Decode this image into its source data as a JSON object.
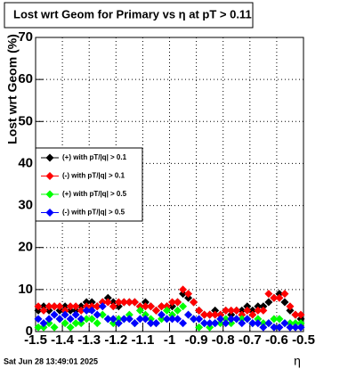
{
  "chart_data": {
    "type": "scatter",
    "title": "Lost wrt Geom for Primary vs   η  at pT > 0.11",
    "y_label": "Lost wrt Geom (%)",
    "x_label": "η",
    "footer": "Sat Jun 28 13:49:01 2025",
    "x": [
      -1.49,
      -1.47,
      -1.45,
      -1.43,
      -1.41,
      -1.39,
      -1.37,
      -1.35,
      -1.33,
      -1.31,
      -1.29,
      -1.27,
      -1.25,
      -1.23,
      -1.21,
      -1.19,
      -1.17,
      -1.15,
      -1.13,
      -1.11,
      -1.09,
      -1.07,
      -1.05,
      -1.03,
      -1.01,
      -0.99,
      -0.97,
      -0.95,
      -0.93,
      -0.91,
      -0.89,
      -0.87,
      -0.85,
      -0.83,
      -0.81,
      -0.79,
      -0.77,
      -0.75,
      -0.73,
      -0.71,
      -0.69,
      -0.67,
      -0.65,
      -0.63,
      -0.61,
      -0.59,
      -0.57,
      -0.55,
      -0.53,
      -0.51
    ],
    "series": [
      {
        "name": "(+) with pT/|q| > 0.1",
        "color": "#000000",
        "values": [
          5,
          6,
          5,
          6,
          5,
          6,
          5,
          5,
          6,
          7,
          7,
          6,
          7,
          8,
          7,
          6,
          7,
          7,
          7,
          6,
          7,
          6,
          5,
          6,
          6,
          6,
          7,
          9,
          8,
          7,
          5,
          4,
          4,
          5,
          4,
          5,
          4,
          5,
          5,
          6,
          5,
          6,
          6,
          7,
          8,
          9,
          7,
          5,
          4,
          3
        ]
      },
      {
        "name": "(-) with pT/|q| > 0.1",
        "color": "#ff0000",
        "values": [
          6,
          5,
          6,
          6,
          6,
          5,
          6,
          6,
          5,
          6,
          6,
          6,
          7,
          7,
          6,
          7,
          7,
          7,
          7,
          6,
          6,
          6,
          5,
          6,
          6,
          7,
          7,
          10,
          9,
          7,
          5,
          4,
          4,
          4,
          4,
          5,
          5,
          5,
          4,
          5,
          4,
          5,
          5,
          9,
          8,
          8,
          9,
          6,
          4,
          4
        ]
      },
      {
        "name": "(+) with pT/|q| > 0.5",
        "color": "#00ff00",
        "values": [
          1,
          1,
          2,
          1,
          3,
          2,
          1,
          2,
          2,
          3,
          3,
          2,
          4,
          3,
          2,
          3,
          3,
          4,
          2,
          5,
          4,
          3,
          2,
          3,
          5,
          4,
          5,
          6,
          4,
          3,
          1,
          2,
          1,
          2,
          2,
          3,
          2,
          3,
          3,
          3,
          2,
          3,
          2,
          2,
          3,
          3,
          2,
          2,
          2,
          2
        ]
      },
      {
        "name": "(-) with pT/|q| > 0.5",
        "color": "#0000ff",
        "values": [
          3,
          2,
          3,
          4,
          3,
          4,
          3,
          4,
          3,
          5,
          5,
          4,
          6,
          3,
          3,
          2,
          3,
          3,
          2,
          3,
          3,
          2,
          2,
          4,
          3,
          3,
          3,
          2,
          4,
          3,
          3,
          2,
          2,
          2,
          3,
          2,
          3,
          3,
          2,
          3,
          2,
          2,
          1,
          2,
          1,
          1,
          2,
          1,
          1,
          1
        ]
      }
    ],
    "xlim": [
      -1.5,
      -0.5
    ],
    "xticks": [
      -1.5,
      -1.4,
      -1.3,
      -1.2,
      -1.1,
      -1,
      -0.9,
      -0.8,
      -0.7,
      -0.6,
      -0.5
    ],
    "ylim": [
      0,
      70
    ],
    "yticks": [
      0,
      10,
      20,
      30,
      40,
      50,
      60,
      70
    ],
    "grid": true
  }
}
